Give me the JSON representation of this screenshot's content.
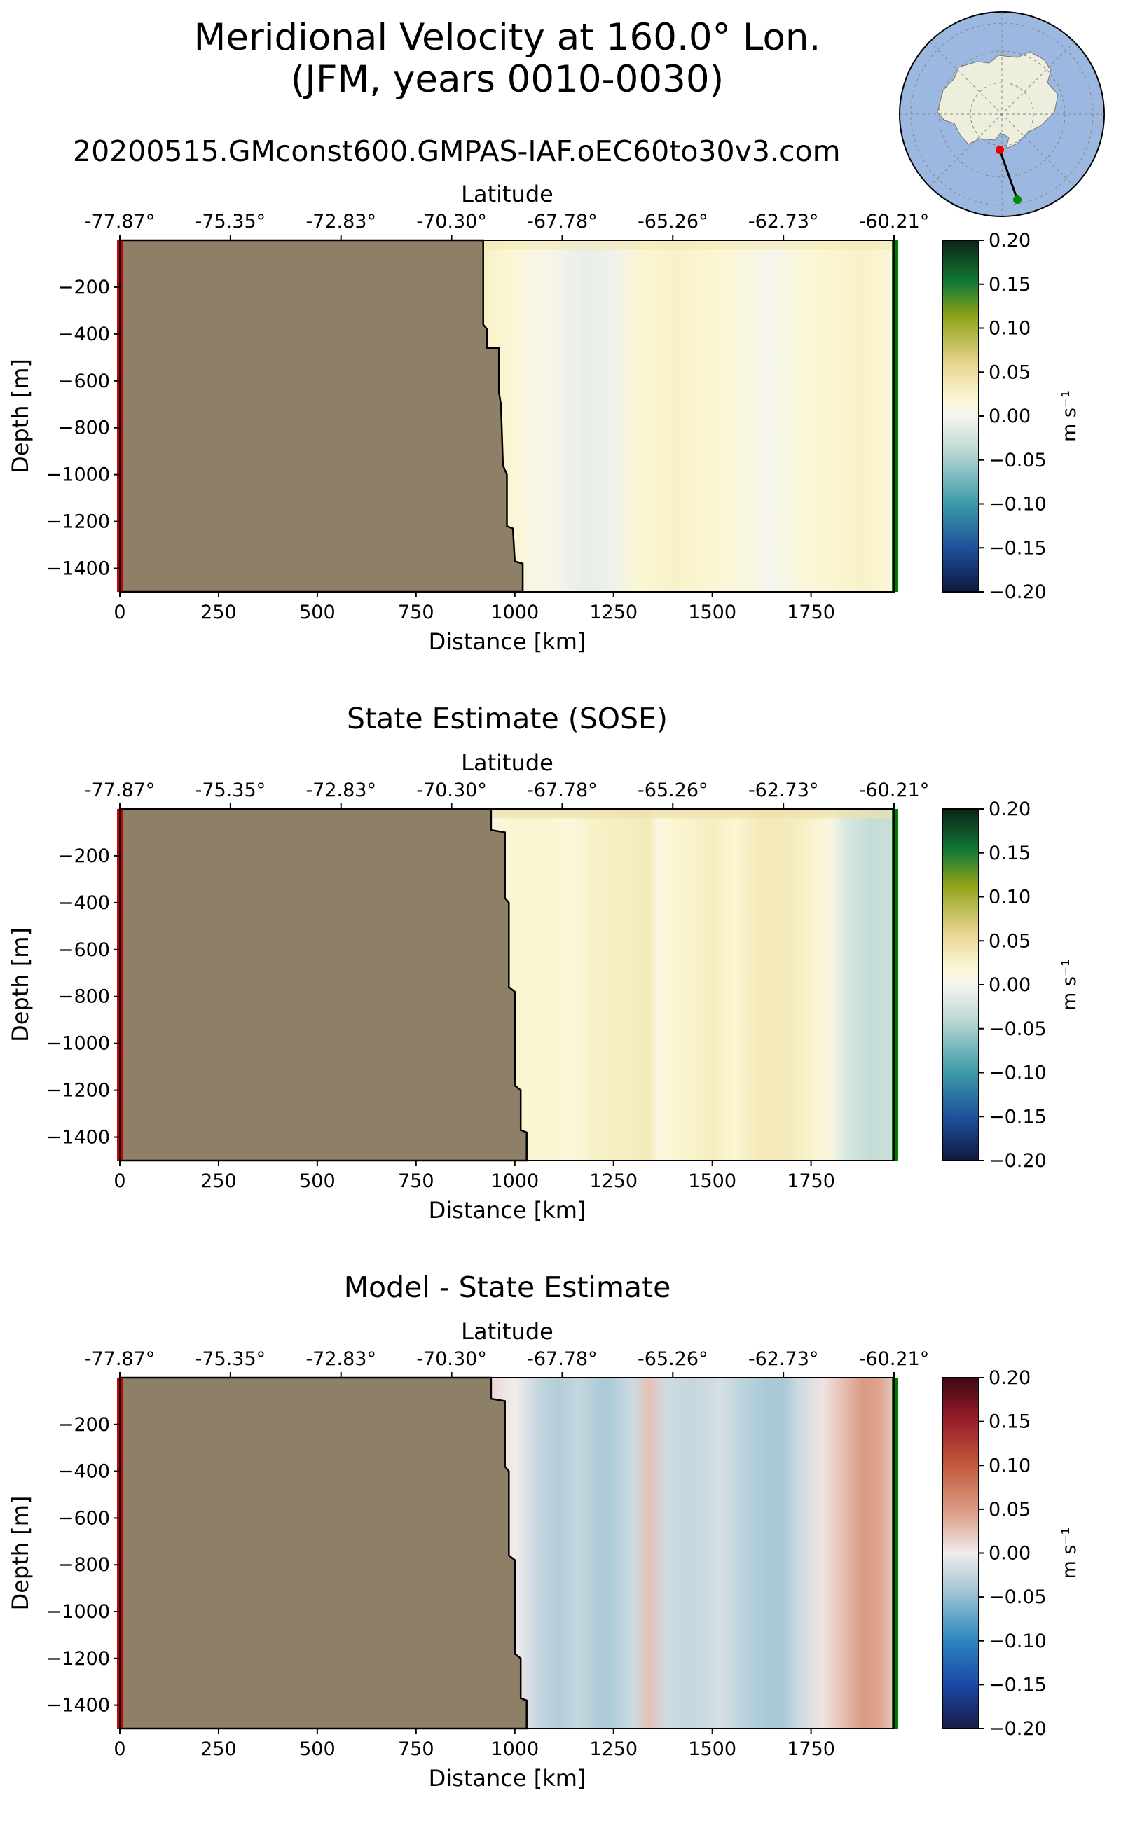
{
  "figure": {
    "title_line1": "Meridional Velocity at 160.0° Lon.",
    "title_line2": "(JFM, years 0010-0030)",
    "run_name": "20200515.GMconst600.GMPAS-IAF.oEC60to30v3.com"
  },
  "colors": {
    "land": "#8e8067",
    "start_marker": "#cc0000",
    "end_marker": "#007a00",
    "ocean_globe": "#9db8e0",
    "antarctica": "#eeeedc"
  },
  "inset_map": {
    "projection": "south-polar-stereographic",
    "transect_start_marker": "red-dot",
    "transect_end_marker": "green-dot"
  },
  "chart_data": [
    {
      "type": "heatmap",
      "id": "model",
      "title": "",
      "xlabel": "Distance [km]",
      "ylabel": "Depth [m]",
      "top_axis_label": "Latitude",
      "xlim": [
        0,
        1960
      ],
      "ylim": [
        -1500,
        0
      ],
      "x_ticks": [
        0,
        250,
        500,
        750,
        1000,
        1250,
        1500,
        1750
      ],
      "x_tick_labels": [
        "0",
        "250",
        "500",
        "750",
        "1000",
        "1250",
        "1500",
        "1750"
      ],
      "y_ticks": [
        -200,
        -400,
        -600,
        -800,
        -1000,
        -1200,
        -1400
      ],
      "y_tick_labels": [
        "−200",
        "−400",
        "−600",
        "−800",
        "−1000",
        "−1200",
        "−1400"
      ],
      "lat_ticks_km": [
        0,
        280,
        560,
        840,
        1120,
        1400,
        1680,
        1960
      ],
      "lat_tick_labels": [
        "-77.87°",
        "-75.35°",
        "-72.83°",
        "-70.30°",
        "-67.78°",
        "-65.26°",
        "-62.73°",
        "-60.21°"
      ],
      "colormap": "ocean-balance",
      "colorbar_label": "m s⁻¹",
      "clim": [
        -0.2,
        0.2
      ],
      "colorbar_ticks": [
        0.2,
        0.15,
        0.1,
        0.05,
        0.0,
        -0.05,
        -0.1,
        -0.15,
        -0.2
      ],
      "colorbar_tick_labels": [
        "0.20",
        "0.15",
        "0.10",
        "0.05",
        "0.00",
        "−0.05",
        "−0.10",
        "−0.15",
        "−0.20"
      ],
      "bathymetry_km_depth": [
        [
          920,
          0
        ],
        [
          920,
          -360
        ],
        [
          930,
          -380
        ],
        [
          930,
          -460
        ],
        [
          960,
          -460
        ],
        [
          960,
          -650
        ],
        [
          965,
          -700
        ],
        [
          970,
          -960
        ],
        [
          980,
          -1000
        ],
        [
          980,
          -1220
        ],
        [
          995,
          -1230
        ],
        [
          1000,
          -1370
        ],
        [
          1020,
          -1380
        ],
        [
          1020,
          -1500
        ]
      ],
      "velocity_profile_km": [
        930,
        980,
        1040,
        1090,
        1140,
        1180,
        1240,
        1320,
        1400,
        1500,
        1600,
        1650,
        1700,
        1780,
        1880,
        1940,
        1960
      ],
      "velocity_profile_ms": [
        0.025,
        0.02,
        0.01,
        0.005,
        -0.005,
        -0.01,
        -0.005,
        0.02,
        0.025,
        0.02,
        0.01,
        0.0,
        0.01,
        0.02,
        0.025,
        0.02,
        0.0
      ],
      "surface_layer_ms": 0.035
    },
    {
      "type": "heatmap",
      "id": "sose",
      "title": "State Estimate (SOSE)",
      "xlabel": "Distance [km]",
      "ylabel": "Depth [m]",
      "top_axis_label": "Latitude",
      "xlim": [
        0,
        1960
      ],
      "ylim": [
        -1500,
        0
      ],
      "x_ticks": [
        0,
        250,
        500,
        750,
        1000,
        1250,
        1500,
        1750
      ],
      "x_tick_labels": [
        "0",
        "250",
        "500",
        "750",
        "1000",
        "1250",
        "1500",
        "1750"
      ],
      "y_ticks": [
        -200,
        -400,
        -600,
        -800,
        -1000,
        -1200,
        -1400
      ],
      "y_tick_labels": [
        "−200",
        "−400",
        "−600",
        "−800",
        "−1000",
        "−1200",
        "−1400"
      ],
      "lat_ticks_km": [
        0,
        280,
        560,
        840,
        1120,
        1400,
        1680,
        1960
      ],
      "lat_tick_labels": [
        "-77.87°",
        "-75.35°",
        "-72.83°",
        "-70.30°",
        "-67.78°",
        "-65.26°",
        "-62.73°",
        "-60.21°"
      ],
      "colormap": "ocean-balance",
      "colorbar_label": "m s⁻¹",
      "clim": [
        -0.2,
        0.2
      ],
      "colorbar_ticks": [
        0.2,
        0.15,
        0.1,
        0.05,
        0.0,
        -0.05,
        -0.1,
        -0.15,
        -0.2
      ],
      "colorbar_tick_labels": [
        "0.20",
        "0.15",
        "0.10",
        "0.05",
        "0.00",
        "−0.05",
        "−0.10",
        "−0.15",
        "−0.20"
      ],
      "bathymetry_km_depth": [
        [
          940,
          0
        ],
        [
          940,
          -90
        ],
        [
          975,
          -100
        ],
        [
          975,
          -380
        ],
        [
          985,
          -400
        ],
        [
          985,
          -760
        ],
        [
          1000,
          -780
        ],
        [
          1000,
          -1180
        ],
        [
          1015,
          -1200
        ],
        [
          1015,
          -1370
        ],
        [
          1030,
          -1380
        ],
        [
          1030,
          -1500
        ]
      ],
      "velocity_profile_km": [
        950,
        1000,
        1080,
        1150,
        1200,
        1280,
        1340,
        1360,
        1400,
        1500,
        1560,
        1620,
        1680,
        1740,
        1800,
        1840,
        1900,
        1960
      ],
      "velocity_profile_ms": [
        0.01,
        0.02,
        0.02,
        0.015,
        0.025,
        0.03,
        0.035,
        0.01,
        0.02,
        0.03,
        0.02,
        0.035,
        0.035,
        0.025,
        0.01,
        -0.02,
        -0.035,
        -0.03
      ],
      "surface_layer_ms": 0.045
    },
    {
      "type": "heatmap",
      "id": "diff",
      "title": "Model - State Estimate",
      "xlabel": "Distance [km]",
      "ylabel": "Depth [m]",
      "top_axis_label": "Latitude",
      "xlim": [
        0,
        1960
      ],
      "ylim": [
        -1500,
        0
      ],
      "x_ticks": [
        0,
        250,
        500,
        750,
        1000,
        1250,
        1500,
        1750
      ],
      "x_tick_labels": [
        "0",
        "250",
        "500",
        "750",
        "1000",
        "1250",
        "1500",
        "1750"
      ],
      "y_ticks": [
        -200,
        -400,
        -600,
        -800,
        -1000,
        -1200,
        -1400
      ],
      "y_tick_labels": [
        "−200",
        "−400",
        "−600",
        "−800",
        "−1000",
        "−1200",
        "−1400"
      ],
      "lat_ticks_km": [
        0,
        280,
        560,
        840,
        1120,
        1400,
        1680,
        1960
      ],
      "lat_tick_labels": [
        "-77.87°",
        "-75.35°",
        "-72.83°",
        "-70.30°",
        "-67.78°",
        "-65.26°",
        "-62.73°",
        "-60.21°"
      ],
      "colormap": "balance",
      "colorbar_label": "m s⁻¹",
      "clim": [
        -0.2,
        0.2
      ],
      "colorbar_ticks": [
        0.2,
        0.15,
        0.1,
        0.05,
        0.0,
        -0.05,
        -0.1,
        -0.15,
        -0.2
      ],
      "colorbar_tick_labels": [
        "0.20",
        "0.15",
        "0.10",
        "0.05",
        "0.00",
        "−0.05",
        "−0.10",
        "−0.15",
        "−0.20"
      ],
      "bathymetry_km_depth": [
        [
          940,
          0
        ],
        [
          940,
          -90
        ],
        [
          975,
          -100
        ],
        [
          975,
          -380
        ],
        [
          985,
          -400
        ],
        [
          985,
          -760
        ],
        [
          1000,
          -780
        ],
        [
          1000,
          -1180
        ],
        [
          1015,
          -1200
        ],
        [
          1015,
          -1370
        ],
        [
          1030,
          -1380
        ],
        [
          1030,
          -1500
        ]
      ],
      "velocity_profile_km": [
        950,
        1000,
        1060,
        1110,
        1160,
        1230,
        1300,
        1340,
        1380,
        1450,
        1520,
        1580,
        1640,
        1680,
        1720,
        1780,
        1840,
        1880,
        1920,
        1960
      ],
      "velocity_profile_ms": [
        0.01,
        0.0,
        -0.025,
        -0.035,
        -0.025,
        -0.04,
        -0.02,
        0.025,
        -0.02,
        -0.025,
        -0.015,
        -0.03,
        -0.04,
        -0.04,
        -0.02,
        0.005,
        0.03,
        0.05,
        0.045,
        0.02
      ],
      "surface_layer_ms": 0.0
    }
  ]
}
